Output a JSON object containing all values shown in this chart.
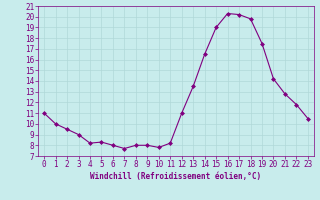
{
  "x": [
    0,
    1,
    2,
    3,
    4,
    5,
    6,
    7,
    8,
    9,
    10,
    11,
    12,
    13,
    14,
    15,
    16,
    17,
    18,
    19,
    20,
    21,
    22,
    23
  ],
  "y": [
    11.0,
    10.0,
    9.5,
    9.0,
    8.2,
    8.3,
    8.0,
    7.7,
    8.0,
    8.0,
    7.8,
    8.2,
    11.0,
    13.5,
    16.5,
    19.0,
    20.3,
    20.2,
    19.8,
    17.5,
    14.2,
    12.8,
    11.8,
    10.5
  ],
  "line_color": "#800080",
  "marker": "D",
  "marker_size": 2.0,
  "bg_color": "#c8ecec",
  "grid_color": "#b0d8d8",
  "xlabel": "Windchill (Refroidissement éolien,°C)",
  "xlabel_color": "#800080",
  "tick_color": "#800080",
  "label_color": "#800080",
  "ylim": [
    7,
    21
  ],
  "xlim": [
    -0.5,
    23.5
  ],
  "yticks": [
    7,
    8,
    9,
    10,
    11,
    12,
    13,
    14,
    15,
    16,
    17,
    18,
    19,
    20,
    21
  ],
  "xticks": [
    0,
    1,
    2,
    3,
    4,
    5,
    6,
    7,
    8,
    9,
    10,
    11,
    12,
    13,
    14,
    15,
    16,
    17,
    18,
    19,
    20,
    21,
    22,
    23
  ],
  "tick_fontsize": 5.5,
  "xlabel_fontsize": 5.5
}
